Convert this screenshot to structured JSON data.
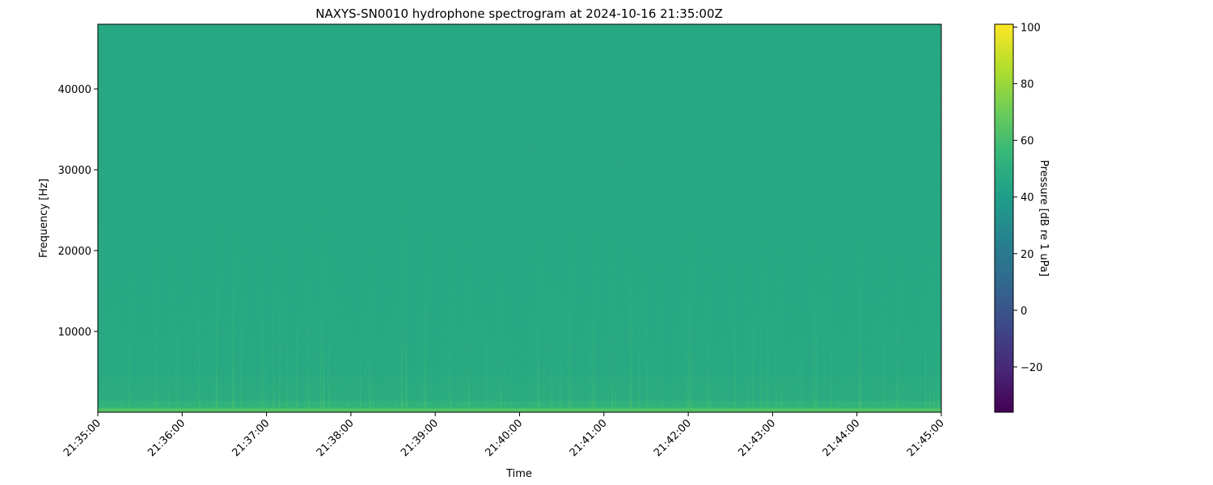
{
  "chart_data": {
    "type": "heatmap",
    "title": "NAXYS-SN0010 hydrophone spectrogram at 2024-10-16 21:35:00Z",
    "xlabel": "Time",
    "ylabel": "Frequency [Hz]",
    "x_ticks": [
      "21:35:00",
      "21:36:00",
      "21:37:00",
      "21:38:00",
      "21:39:00",
      "21:40:00",
      "21:41:00",
      "21:42:00",
      "21:43:00",
      "21:44:00",
      "21:45:00"
    ],
    "xlim": [
      "21:35:00",
      "21:45:00"
    ],
    "y_ticks": [
      10000,
      20000,
      30000,
      40000
    ],
    "ylim": [
      0,
      48000
    ],
    "colormap": "viridis",
    "colorbar": {
      "label": "Pressure [dB re 1 uPa]",
      "ticks": [
        -20,
        0,
        20,
        40,
        60,
        80,
        100
      ],
      "tick_labels": [
        "−20",
        "0",
        "20",
        "40",
        "60",
        "80",
        "100"
      ],
      "range": [
        -36,
        101
      ]
    },
    "typical_level_db": 46,
    "low_frequency_band_db": 62,
    "low_frequency_band_hz": [
      0,
      500
    ],
    "grid": false
  }
}
